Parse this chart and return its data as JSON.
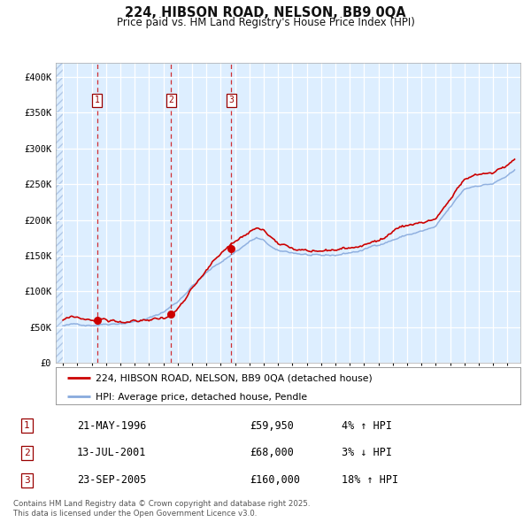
{
  "title": "224, HIBSON ROAD, NELSON, BB9 0QA",
  "subtitle": "Price paid vs. HM Land Registry's House Price Index (HPI)",
  "legend_red": "224, HIBSON ROAD, NELSON, BB9 0QA (detached house)",
  "legend_blue": "HPI: Average price, detached house, Pendle",
  "transactions": [
    {
      "id": 1,
      "date": "21-MAY-1996",
      "price": 59950,
      "hpi_pct": "4% ↑ HPI"
    },
    {
      "id": 2,
      "date": "13-JUL-2001",
      "price": 68000,
      "hpi_pct": "3% ↓ HPI"
    },
    {
      "id": 3,
      "date": "23-SEP-2005",
      "price": 160000,
      "hpi_pct": "18% ↑ HPI"
    }
  ],
  "transaction_dates_decimal": [
    1996.38,
    2001.54,
    2005.73
  ],
  "transaction_prices": [
    59950,
    68000,
    160000
  ],
  "plot_bg_color": "#ddeeff",
  "red_line_color": "#cc0000",
  "blue_line_color": "#88aadd",
  "ylim": [
    0,
    420000
  ],
  "yticks": [
    0,
    50000,
    100000,
    150000,
    200000,
    250000,
    300000,
    350000,
    400000
  ],
  "ytick_labels": [
    "£0",
    "£50K",
    "£100K",
    "£150K",
    "£200K",
    "£250K",
    "£300K",
    "£350K",
    "£400K"
  ],
  "footer": "Contains HM Land Registry data © Crown copyright and database right 2025.\nThis data is licensed under the Open Government Licence v3.0.",
  "xlim_start": 1993.5,
  "xlim_end": 2025.9,
  "hatch_end": 1994.0
}
